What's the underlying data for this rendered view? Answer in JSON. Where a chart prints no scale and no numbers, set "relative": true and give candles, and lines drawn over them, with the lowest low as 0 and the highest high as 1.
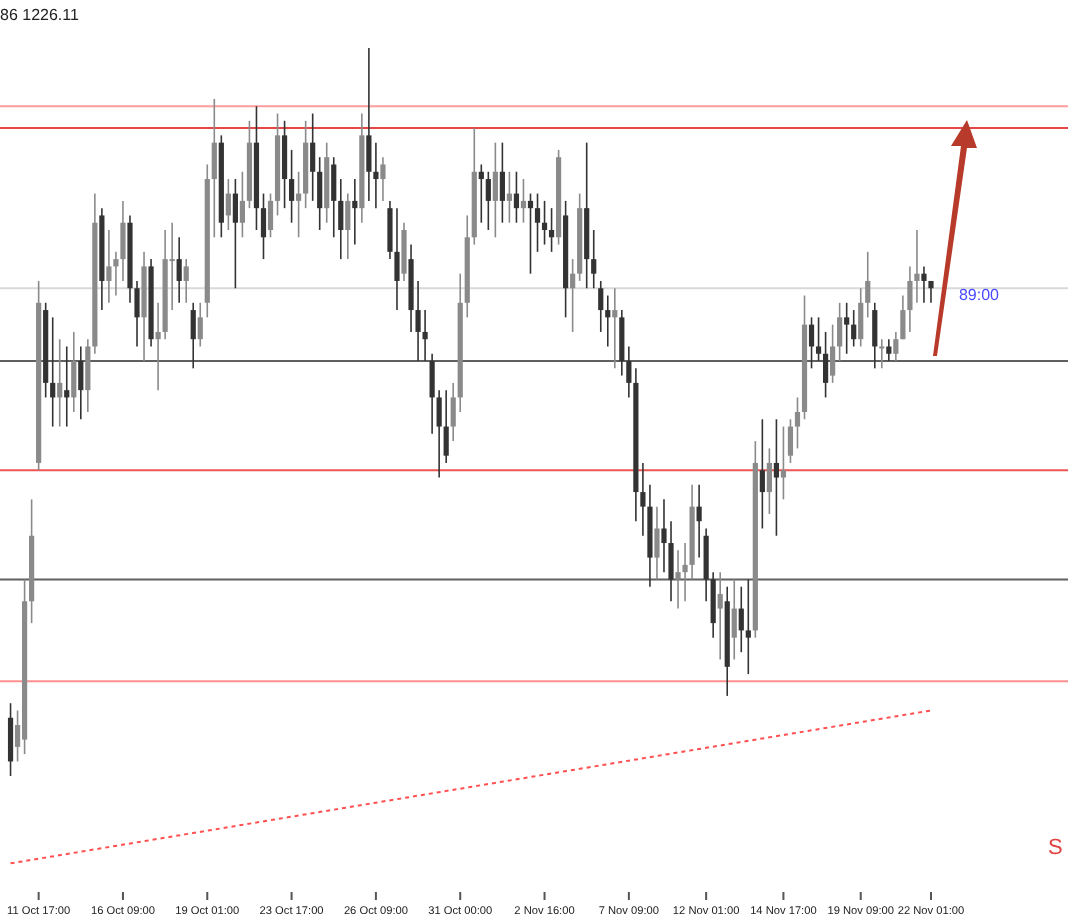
{
  "chart_data": {
    "type": "candlestick",
    "relative": true,
    "colors": [
      "#333333",
      "#8a8a8a",
      "#8a8a8a",
      "#8a8a8a",
      "#8a8a8a",
      "#333333",
      "#333333",
      "#8a8a8a",
      "#333333",
      "#8a8a8a",
      "#333333",
      "#8a8a8a",
      "#8a8a8a",
      "#333333",
      "#8a8a8a",
      "#8a8a8a",
      "#8a8a8a",
      "#333333",
      "#333333",
      "#8a8a8a",
      "#333333",
      "#8a8a8a",
      "#8a8a8a",
      "#8a8a8a",
      "#333333",
      "#8a8a8a",
      "#333333",
      "#8a8a8a",
      "#8a8a8a",
      "#8a8a8a",
      "#333333",
      "#8a8a8a",
      "#333333",
      "#8a8a8a",
      "#8a8a8a",
      "#333333",
      "#333333",
      "#8a8a8a",
      "#8a8a8a",
      "#333333",
      "#333333",
      "#8a8a8a",
      "#8a8a8a",
      "#333333",
      "#333333",
      "#8a8a8a",
      "#333333",
      "#333333",
      "#8a8a8a",
      "#333333",
      "#8a8a8a",
      "#333333",
      "#333333",
      "#8a8a8a",
      "#333333",
      "#333333",
      "#8a8a8a",
      "#333333",
      "#333333",
      "#333333",
      "#333333",
      "#333333",
      "#333333",
      "#8a8a8a",
      "#8a8a8a",
      "#8a8a8a",
      "#8a8a8a",
      "#333333",
      "#333333",
      "#8a8a8a",
      "#333333",
      "#8a8a8a",
      "#333333",
      "#8a8a8a",
      "#333333",
      "#333333",
      "#333333",
      "#333333",
      "#8a8a8a",
      "#333333",
      "#8a8a8a",
      "#8a8a8a",
      "#333333",
      "#333333",
      "#333333",
      "#333333",
      "#8a8a8a",
      "#333333",
      "#333333",
      "#333333",
      "#333333",
      "#333333",
      "#8a8a8a",
      "#333333",
      "#333333",
      "#8a8a8a",
      "#8a8a8a",
      "#8a8a8a",
      "#333333",
      "#333333",
      "#333333",
      "#8a8a8a",
      "#333333",
      "#8a8a8a",
      "#333333",
      "#333333",
      "#8a8a8a",
      "#333333",
      "#8a8a8a",
      "#333333",
      "#8a8a8a",
      "#8a8a8a",
      "#8a8a8a",
      "#8a8a8a",
      "#333333",
      "#333333",
      "#333333",
      "#8a8a8a",
      "#8a8a8a",
      "#333333",
      "#333333",
      "#8a8a8a",
      "#8a8a8a",
      "#333333",
      "#8a8a8a",
      "#333333",
      "#8a8a8a",
      "#8a8a8a",
      "#8a8a8a",
      "#8a8a8a",
      "#333333",
      "#333333"
    ],
    "categories": [
      null,
      null,
      null,
      null,
      "11 Oct 17:00",
      null,
      null,
      null,
      null,
      null,
      null,
      null,
      null,
      null,
      null,
      null,
      "16 Oct 09:00",
      null,
      null,
      null,
      null,
      null,
      null,
      null,
      null,
      null,
      null,
      null,
      "19 Oct 01:00",
      null,
      null,
      null,
      null,
      null,
      null,
      null,
      null,
      null,
      null,
      null,
      "23 Oct 17:00",
      null,
      null,
      null,
      null,
      null,
      null,
      null,
      null,
      null,
      null,
      null,
      "26 Oct 09:00",
      null,
      null,
      null,
      null,
      null,
      null,
      null,
      null,
      null,
      null,
      null,
      "31 Oct 00:00",
      null,
      null,
      null,
      null,
      null,
      null,
      null,
      null,
      null,
      null,
      null,
      "2 Nov 16:00",
      null,
      null,
      null,
      null,
      null,
      null,
      null,
      null,
      null,
      null,
      null,
      "7 Nov 09:00",
      null,
      null,
      null,
      null,
      null,
      null,
      null,
      null,
      null,
      null,
      "12 Nov 01:00",
      null,
      null,
      null,
      null,
      null,
      null,
      null,
      null,
      null,
      null,
      "14 Nov 17:00",
      null,
      null,
      null,
      null,
      null,
      null,
      null,
      null,
      null,
      null,
      "19 Nov 09:00",
      null,
      null,
      null,
      null,
      null,
      null,
      null,
      null,
      null,
      "22 Nov 01:00"
    ],
    "ohlc": [
      [
        0.08,
        0.1,
        0,
        0.02
      ],
      [
        0.04,
        0.09,
        0.02,
        0.07
      ],
      [
        0.05,
        0.27,
        0.03,
        0.24
      ],
      [
        0.24,
        0.38,
        0.21,
        0.33
      ],
      [
        0.43,
        0.68,
        0.42,
        0.65
      ],
      [
        0.64,
        0.65,
        0.52,
        0.54
      ],
      [
        0.54,
        0.63,
        0.48,
        0.52
      ],
      [
        0.52,
        0.6,
        0.48,
        0.54
      ],
      [
        0.53,
        0.59,
        0.48,
        0.52
      ],
      [
        0.52,
        0.61,
        0.5,
        0.57
      ],
      [
        0.57,
        0.59,
        0.49,
        0.53
      ],
      [
        0.53,
        0.6,
        0.5,
        0.59
      ],
      [
        0.59,
        0.8,
        0.58,
        0.76
      ],
      [
        0.77,
        0.78,
        0.64,
        0.68
      ],
      [
        0.68,
        0.75,
        0.65,
        0.7
      ],
      [
        0.7,
        0.72,
        0.66,
        0.71
      ],
      [
        0.71,
        0.79,
        0.68,
        0.76
      ],
      [
        0.76,
        0.77,
        0.65,
        0.67
      ],
      [
        0.67,
        0.68,
        0.59,
        0.63
      ],
      [
        0.63,
        0.72,
        0.57,
        0.7
      ],
      [
        0.7,
        0.71,
        0.59,
        0.6
      ],
      [
        0.6,
        0.65,
        0.53,
        0.61
      ],
      [
        0.61,
        0.75,
        0.6,
        0.71
      ],
      [
        0.71,
        0.76,
        0.64,
        0.71
      ],
      [
        0.71,
        0.74,
        0.65,
        0.68
      ],
      [
        0.68,
        0.71,
        0.65,
        0.7
      ],
      [
        0.64,
        0.65,
        0.56,
        0.6
      ],
      [
        0.6,
        0.65,
        0.59,
        0.63
      ],
      [
        0.65,
        0.84,
        0.63,
        0.82
      ],
      [
        0.82,
        0.93,
        0.74,
        0.87
      ],
      [
        0.87,
        0.88,
        0.74,
        0.76
      ],
      [
        0.77,
        0.82,
        0.75,
        0.8
      ],
      [
        0.8,
        0.82,
        0.67,
        0.76
      ],
      [
        0.76,
        0.83,
        0.74,
        0.79
      ],
      [
        0.79,
        0.9,
        0.78,
        0.87
      ],
      [
        0.87,
        0.92,
        0.75,
        0.78
      ],
      [
        0.78,
        0.8,
        0.71,
        0.74
      ],
      [
        0.75,
        0.8,
        0.74,
        0.79
      ],
      [
        0.79,
        0.91,
        0.77,
        0.88
      ],
      [
        0.88,
        0.9,
        0.78,
        0.82
      ],
      [
        0.82,
        0.86,
        0.76,
        0.79
      ],
      [
        0.79,
        0.83,
        0.74,
        0.8
      ],
      [
        0.8,
        0.9,
        0.78,
        0.87
      ],
      [
        0.87,
        0.91,
        0.79,
        0.83
      ],
      [
        0.83,
        0.85,
        0.75,
        0.78
      ],
      [
        0.78,
        0.87,
        0.76,
        0.85
      ],
      [
        0.84,
        0.85,
        0.74,
        0.79
      ],
      [
        0.79,
        0.82,
        0.71,
        0.75
      ],
      [
        0.75,
        0.8,
        0.71,
        0.79
      ],
      [
        0.79,
        0.82,
        0.73,
        0.78
      ],
      [
        0.78,
        0.91,
        0.76,
        0.88
      ],
      [
        0.88,
        1,
        0.79,
        0.83
      ],
      [
        0.83,
        0.87,
        0.78,
        0.82
      ],
      [
        0.82,
        0.85,
        0.79,
        0.84
      ],
      [
        0.78,
        0.79,
        0.71,
        0.72
      ],
      [
        0.72,
        0.78,
        0.64,
        0.68
      ],
      [
        0.69,
        0.76,
        0.68,
        0.75
      ],
      [
        0.71,
        0.73,
        0.61,
        0.64
      ],
      [
        0.64,
        0.68,
        0.57,
        0.61
      ],
      [
        0.61,
        0.64,
        0.57,
        0.6
      ],
      [
        0.57,
        0.58,
        0.47,
        0.52
      ],
      [
        0.52,
        0.53,
        0.41,
        0.48
      ],
      [
        0.48,
        0.53,
        0.43,
        0.44
      ],
      [
        0.48,
        0.54,
        0.46,
        0.52
      ],
      [
        0.52,
        0.69,
        0.5,
        0.65
      ],
      [
        0.65,
        0.77,
        0.63,
        0.74
      ],
      [
        0.74,
        0.89,
        0.73,
        0.83
      ],
      [
        0.83,
        0.84,
        0.76,
        0.82
      ],
      [
        0.82,
        0.83,
        0.75,
        0.79
      ],
      [
        0.79,
        0.87,
        0.74,
        0.83
      ],
      [
        0.83,
        0.87,
        0.76,
        0.79
      ],
      [
        0.79,
        0.83,
        0.76,
        0.8
      ],
      [
        0.8,
        0.83,
        0.76,
        0.78
      ],
      [
        0.78,
        0.82,
        0.76,
        0.79
      ],
      [
        0.79,
        0.8,
        0.69,
        0.78
      ],
      [
        0.78,
        0.8,
        0.72,
        0.76
      ],
      [
        0.76,
        0.79,
        0.73,
        0.75
      ],
      [
        0.75,
        0.78,
        0.72,
        0.74
      ],
      [
        0.74,
        0.86,
        0.73,
        0.85
      ],
      [
        0.77,
        0.79,
        0.63,
        0.67
      ],
      [
        0.67,
        0.71,
        0.61,
        0.69
      ],
      [
        0.69,
        0.8,
        0.68,
        0.78
      ],
      [
        0.78,
        0.87,
        0.67,
        0.71
      ],
      [
        0.71,
        0.75,
        0.67,
        0.69
      ],
      [
        0.67,
        0.68,
        0.61,
        0.64
      ],
      [
        0.64,
        0.66,
        0.59,
        0.63
      ],
      [
        0.63,
        0.67,
        0.56,
        0.64
      ],
      [
        0.63,
        0.64,
        0.55,
        0.57
      ],
      [
        0.57,
        0.59,
        0.52,
        0.54
      ],
      [
        0.54,
        0.56,
        0.35,
        0.39
      ],
      [
        0.39,
        0.43,
        0.33,
        0.37
      ],
      [
        0.37,
        0.4,
        0.26,
        0.3
      ],
      [
        0.3,
        0.37,
        0.27,
        0.34
      ],
      [
        0.34,
        0.38,
        0.28,
        0.32
      ],
      [
        0.32,
        0.35,
        0.24,
        0.27
      ],
      [
        0.27,
        0.31,
        0.23,
        0.28
      ],
      [
        0.28,
        0.32,
        0.24,
        0.29
      ],
      [
        0.29,
        0.4,
        0.27,
        0.37
      ],
      [
        0.37,
        0.4,
        0.3,
        0.35
      ],
      [
        0.33,
        0.34,
        0.24,
        0.27
      ],
      [
        0.27,
        0.28,
        0.19,
        0.21
      ],
      [
        0.23,
        0.28,
        0.16,
        0.25
      ],
      [
        0.24,
        0.26,
        0.11,
        0.15
      ],
      [
        0.19,
        0.27,
        0.16,
        0.23
      ],
      [
        0.23,
        0.26,
        0.17,
        0.2
      ],
      [
        0.2,
        0.27,
        0.14,
        0.19
      ],
      [
        0.2,
        0.46,
        0.19,
        0.43
      ],
      [
        0.42,
        0.49,
        0.34,
        0.39
      ],
      [
        0.39,
        0.45,
        0.36,
        0.43
      ],
      [
        0.43,
        0.49,
        0.33,
        0.41
      ],
      [
        0.41,
        0.48,
        0.38,
        0.42
      ],
      [
        0.44,
        0.49,
        0.43,
        0.48
      ],
      [
        0.48,
        0.52,
        0.45,
        0.5
      ],
      [
        0.5,
        0.66,
        0.49,
        0.62
      ],
      [
        0.62,
        0.63,
        0.56,
        0.59
      ],
      [
        0.59,
        0.63,
        0.57,
        0.58
      ],
      [
        0.58,
        0.61,
        0.52,
        0.54
      ],
      [
        0.55,
        0.62,
        0.54,
        0.59
      ],
      [
        0.59,
        0.65,
        0.57,
        0.63
      ],
      [
        0.63,
        0.65,
        0.58,
        0.62
      ],
      [
        0.62,
        0.64,
        0.59,
        0.6
      ],
      [
        0.6,
        0.67,
        0.59,
        0.65
      ],
      [
        0.65,
        0.72,
        0.63,
        0.68
      ],
      [
        0.64,
        0.65,
        0.56,
        0.59
      ],
      [
        0.59,
        0.6,
        0.56,
        0.59
      ],
      [
        0.59,
        0.6,
        0.57,
        0.58
      ],
      [
        0.58,
        0.61,
        0.57,
        0.6
      ],
      [
        0.6,
        0.66,
        0.6,
        0.64
      ],
      [
        0.64,
        0.7,
        0.61,
        0.68
      ],
      [
        0.68,
        0.75,
        0.65,
        0.69
      ],
      [
        0.69,
        0.7,
        0.65,
        0.68
      ],
      [
        0.68,
        0.68,
        0.65,
        0.67
      ]
    ],
    "series": [
      {
        "type": "line",
        "values": [
          -0.12,
          null,
          null,
          null,
          null,
          null,
          null,
          null,
          null,
          null,
          null,
          null,
          null,
          null,
          null,
          null,
          null,
          null,
          null,
          null,
          null,
          null,
          null,
          null,
          null,
          null,
          null,
          null,
          null,
          null,
          null,
          null,
          null,
          null,
          null,
          null,
          null,
          null,
          null,
          null,
          null,
          null,
          null,
          null,
          null,
          null,
          null,
          null,
          null,
          null,
          null,
          null,
          null,
          null,
          null,
          null,
          null,
          null,
          null,
          null,
          null,
          null,
          null,
          null,
          null,
          null,
          null,
          null,
          null,
          null,
          null,
          null,
          null,
          null,
          null,
          null,
          null,
          null,
          null,
          null,
          null,
          null,
          null,
          null,
          null,
          null,
          null,
          null,
          null,
          null,
          null,
          null,
          null,
          null,
          null,
          null,
          null,
          null,
          null,
          null,
          null,
          null,
          null,
          null,
          null,
          null,
          null,
          null,
          null,
          null,
          null,
          null,
          null,
          null,
          null,
          null,
          null,
          null,
          null,
          null,
          null,
          null,
          null,
          null,
          null,
          null,
          null,
          null,
          null,
          null,
          null,
          0.09
        ],
        "color": "#ff5050",
        "line_style": "dotted"
      }
    ],
    "ref_lines": [
      {
        "axis": "y",
        "value": 0.92,
        "color": "#ff9c9c"
      },
      {
        "axis": "y",
        "value": 0.89,
        "color": "#e64646"
      },
      {
        "axis": "y",
        "value": 0.67,
        "color": "#d9d9d9"
      },
      {
        "axis": "y",
        "value": 0.57,
        "color": "#606060"
      },
      {
        "axis": "y",
        "value": 0.42,
        "color": "#ee5555"
      },
      {
        "axis": "y",
        "value": 0.27,
        "color": "#606060"
      },
      {
        "axis": "y",
        "value": 0.13,
        "color": "#ff9090"
      }
    ],
    "annotations": [
      "86 1226.11",
      "89:00",
      "S"
    ]
  }
}
